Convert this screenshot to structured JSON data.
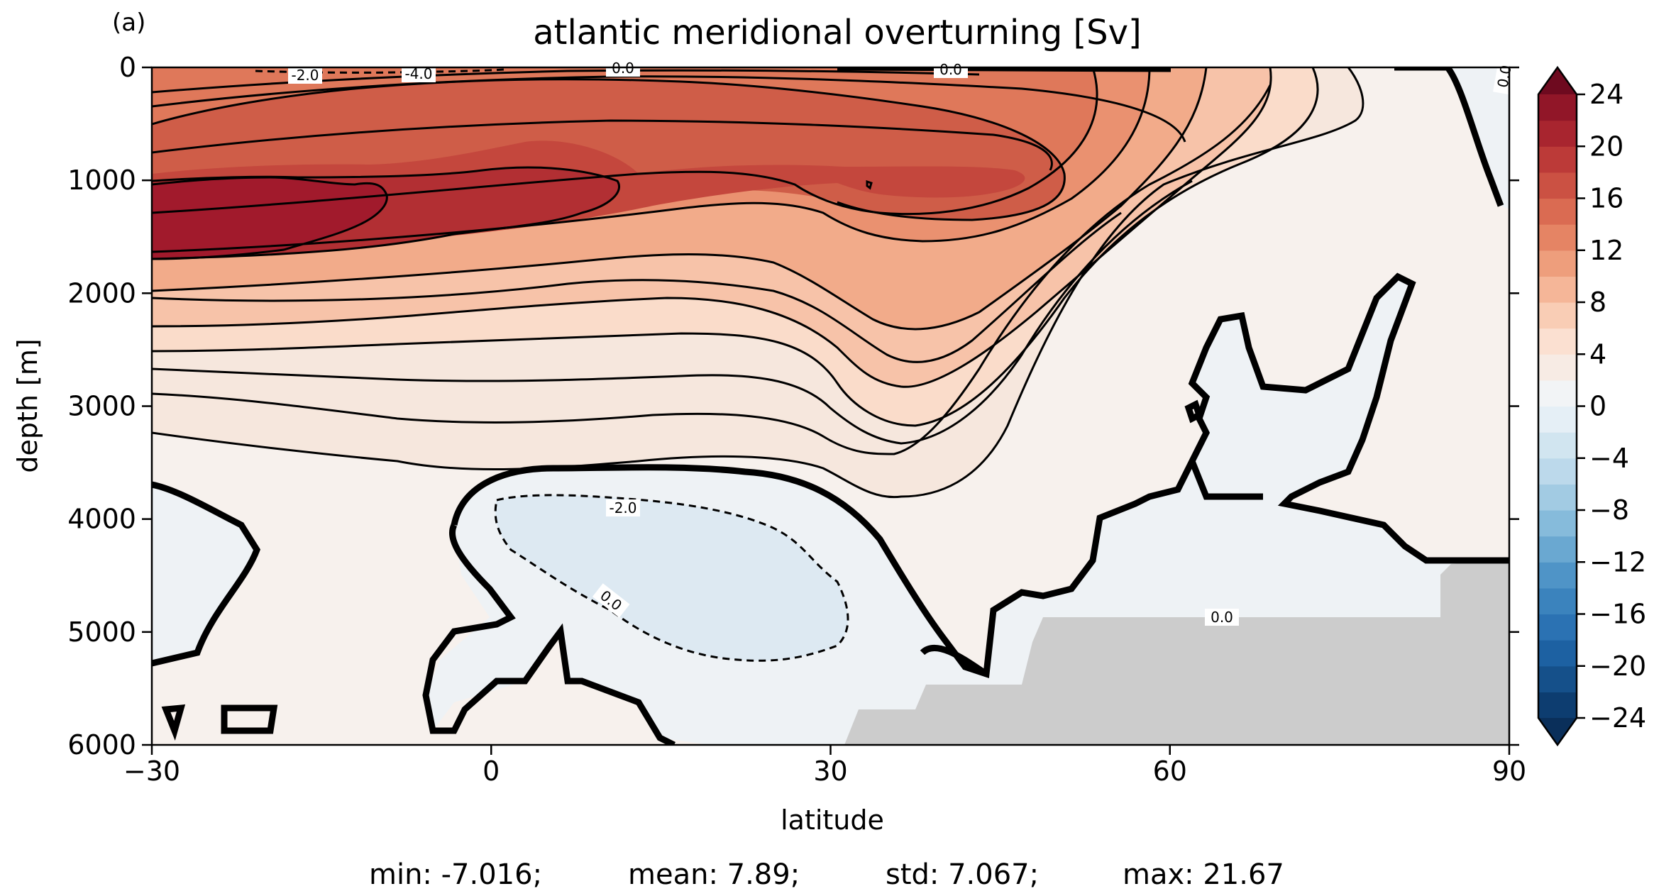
{
  "panel_label": "(a)",
  "chart_data": {
    "type": "contour",
    "title": "atlantic meridional overturning [Sv]",
    "xlabel": "latitude",
    "ylabel": "depth [m]",
    "xlim": [
      -30,
      90
    ],
    "ylim": [
      6000,
      0
    ],
    "x_ticks": [
      "−30",
      "0",
      "30",
      "60",
      "90"
    ],
    "x_tick_values": [
      -30,
      0,
      30,
      60,
      90
    ],
    "y_ticks": [
      "0",
      "1000",
      "2000",
      "3000",
      "4000",
      "5000",
      "6000"
    ],
    "y_tick_values": [
      0,
      1000,
      2000,
      3000,
      4000,
      5000,
      6000
    ],
    "colormap": "RdBu_r",
    "colorbar": {
      "ticks": [
        "24",
        "20",
        "16",
        "12",
        "8",
        "4",
        "0",
        "−4",
        "−8",
        "−12",
        "−16",
        "−20",
        "−24"
      ],
      "tick_values": [
        24,
        20,
        16,
        12,
        8,
        4,
        0,
        -4,
        -8,
        -12,
        -16,
        -20,
        -24
      ],
      "levels": [
        -24,
        -22,
        -20,
        -18,
        -16,
        -14,
        -12,
        -10,
        -8,
        -6,
        -4,
        -2,
        0,
        2,
        4,
        6,
        8,
        10,
        12,
        14,
        16,
        18,
        20,
        22,
        24
      ],
      "extend": "both",
      "colors": [
        "#0d3d70",
        "#15508a",
        "#1d61a2",
        "#2b72b3",
        "#3b83bd",
        "#4f94c7",
        "#6aa8d1",
        "#86bbdb",
        "#a2cbe3",
        "#bcd9eb",
        "#d1e5f0",
        "#e5eff6",
        "#f2f4f6",
        "#f7ebe4",
        "#fbe0d1",
        "#f9cdb5",
        "#f5b698",
        "#ee9e7c",
        "#e58464",
        "#da6b52",
        "#cb5143",
        "#bc3a38",
        "#a8252f",
        "#911628"
      ]
    },
    "contour_labels": [
      "-2.0",
      "-4.0",
      "0.0",
      "0.0",
      "0.0",
      "-2.0",
      "0.0",
      "0.0"
    ],
    "features": {
      "max_cell": "~21 Sv near 1000–1500 m, −30° to −15°",
      "upper_cell_extent": "0–3800 m, −30° to 70°",
      "deep_negative_cell": "~−2 Sv near 4000–5500 m, 0° to 30°",
      "topography": "grey fill below ~4800 m north of 30°"
    },
    "stats": {
      "min": "-7.016",
      "mean": "7.89",
      "std": "7.067",
      "max": "21.67"
    }
  },
  "stats_labels": {
    "min": "min: -7.016;",
    "mean": "mean: 7.89;",
    "std": "std: 7.067;",
    "max": "max: 21.67"
  }
}
